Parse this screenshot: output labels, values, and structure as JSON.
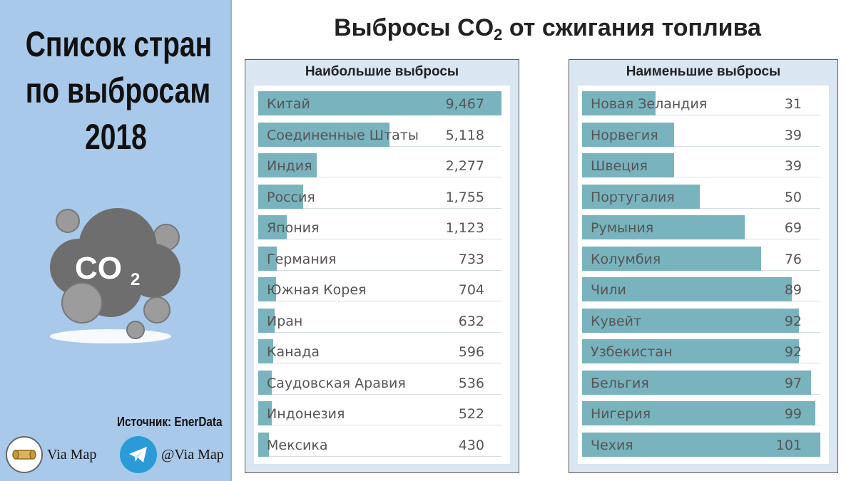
{
  "sidebar": {
    "title_lines": [
      "Список стран",
      "по выбросам",
      "2018"
    ],
    "source": "Источник: EnerData",
    "brand_left": "Via Map",
    "brand_right": "@Via Map",
    "illustration_text": "CO",
    "illustration_sub": "2"
  },
  "title": {
    "prefix": "Выбросы CO",
    "sub": "2",
    "suffix": " от сжигания топлива"
  },
  "colors": {
    "bar": "#79b3bd",
    "sidebar": "#a9c9ea",
    "panel": "#dbe6f3"
  },
  "chart_data": [
    {
      "type": "bar",
      "orientation": "horizontal",
      "title": "Наибольшие выбросы",
      "categories": [
        "Китай",
        "Соединенные Штаты",
        "Индия",
        "Россия",
        "Япония",
        "Германия",
        "Южная Корея",
        "Иран",
        "Канада",
        "Саудовская Аравия",
        "Индонезия",
        "Мексика"
      ],
      "values": [
        9467,
        5118,
        2277,
        1755,
        1123,
        733,
        704,
        632,
        596,
        536,
        522,
        430
      ],
      "value_labels": [
        "9,467",
        "5,118",
        "2,277",
        "1,755",
        "1,123",
        "733",
        "704",
        "632",
        "596",
        "536",
        "522",
        "430"
      ],
      "xlim": [
        0,
        9467
      ],
      "grid": false
    },
    {
      "type": "bar",
      "orientation": "horizontal",
      "title": "Наименьшие выбросы",
      "categories": [
        "Новая Зеландия",
        "Норвегия",
        "Швеция",
        "Португалия",
        "Румыния",
        "Колумбия",
        "Чили",
        "Кувейт",
        "Узбекистан",
        "Бельгия",
        "Нигерия",
        "Чехия"
      ],
      "values": [
        31,
        39,
        39,
        50,
        69,
        76,
        89,
        92,
        92,
        97,
        99,
        101
      ],
      "value_labels": [
        "31",
        "39",
        "39",
        "50",
        "69",
        "76",
        "89",
        "92",
        "92",
        "97",
        "99",
        "101"
      ],
      "xlim": [
        0,
        101
      ],
      "grid": false
    }
  ]
}
